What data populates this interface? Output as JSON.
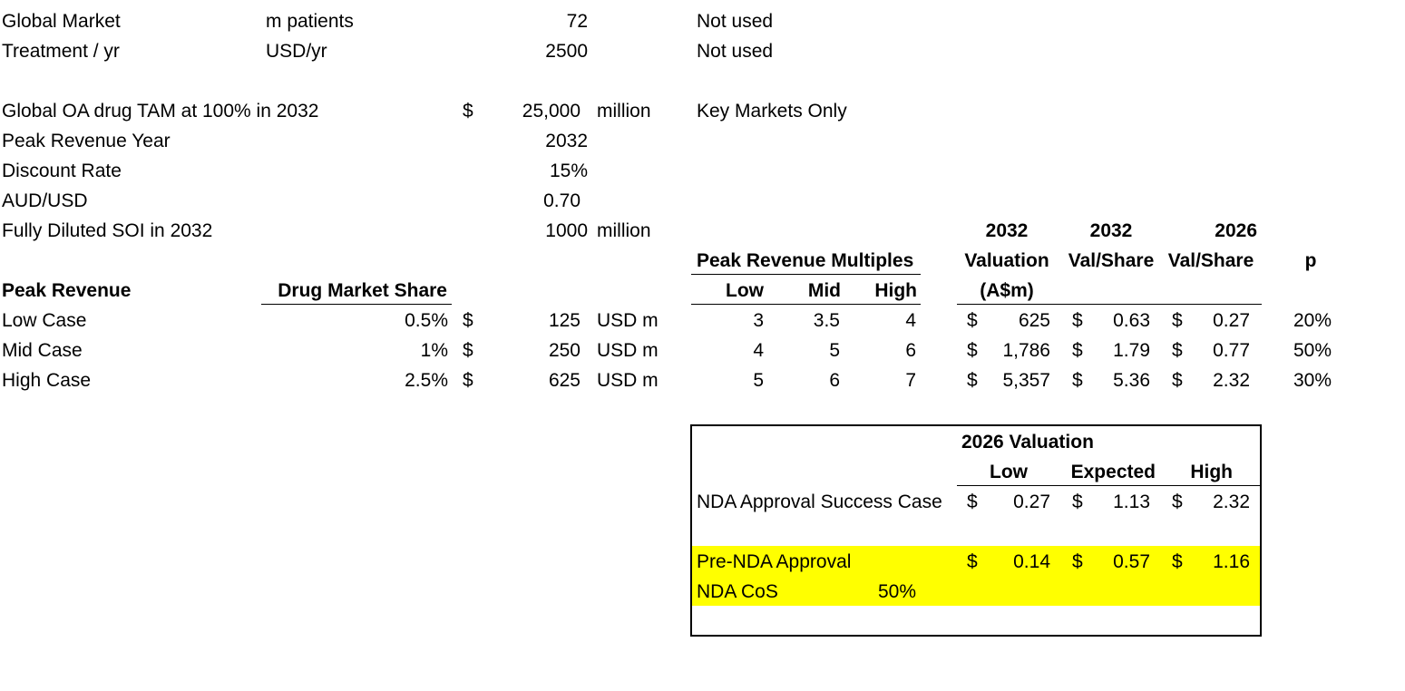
{
  "inputs": {
    "global_market": {
      "label": "Global Market",
      "unit": "m patients",
      "value": "72",
      "note": "Not used"
    },
    "treatment": {
      "label": "Treatment / yr",
      "unit": "USD/yr",
      "value": "2500",
      "note": "Not used"
    },
    "tam": {
      "label": "Global OA drug TAM at 100% in 2032",
      "currency": "$",
      "value": "25,000",
      "unit": "million",
      "note": "Key Markets Only"
    },
    "peak_year": {
      "label": "Peak Revenue Year",
      "value": "2032"
    },
    "discount_rate": {
      "label": "Discount Rate",
      "value": "15%"
    },
    "fx": {
      "label": "AUD/USD",
      "value": "0.70"
    },
    "soi": {
      "label": "Fully Diluted SOI in 2032",
      "value": "1000",
      "unit": "million"
    }
  },
  "revenue_table": {
    "title": "Peak Revenue",
    "share_header": "Drug Market Share",
    "multiples_header": "Peak Revenue Multiples",
    "multiple_cols": [
      "Low",
      "Mid",
      "High"
    ],
    "val_headers": {
      "c1": [
        "2032",
        "Valuation",
        "(A$m)"
      ],
      "c2": [
        "2032",
        "Val/Share"
      ],
      "c3": [
        "2026",
        "Val/Share"
      ],
      "p": "p"
    },
    "rows": [
      {
        "label": "Low Case",
        "share": "0.5%",
        "cur": "$",
        "rev": "125",
        "unit": "USD m",
        "m_low": "3",
        "m_mid": "3.5",
        "m_high": "4",
        "val": "625",
        "vps2032": "0.63",
        "vps2026": "0.27",
        "p": "20%"
      },
      {
        "label": "Mid Case",
        "share": "1%",
        "cur": "$",
        "rev": "250",
        "unit": "USD m",
        "m_low": "4",
        "m_mid": "5",
        "m_high": "6",
        "val": "1,786",
        "vps2032": "1.79",
        "vps2026": "0.77",
        "p": "50%"
      },
      {
        "label": "High Case",
        "share": "2.5%",
        "cur": "$",
        "rev": "625",
        "unit": "USD m",
        "m_low": "5",
        "m_mid": "6",
        "m_high": "7",
        "val": "5,357",
        "vps2032": "5.36",
        "vps2026": "2.32",
        "p": "30%"
      }
    ]
  },
  "valuation_box": {
    "title": "2026 Valuation",
    "cols": [
      "Low",
      "Expected",
      "High"
    ],
    "success": {
      "label": "NDA Approval Success Case",
      "low": "0.27",
      "exp": "1.13",
      "high": "2.32"
    },
    "pre": {
      "label": "Pre-NDA Approval",
      "low": "0.14",
      "exp": "0.57",
      "high": "1.16"
    },
    "cos": {
      "label": "NDA CoS",
      "value": "50%"
    },
    "currency": "$",
    "highlight_color": "#ffff00"
  }
}
